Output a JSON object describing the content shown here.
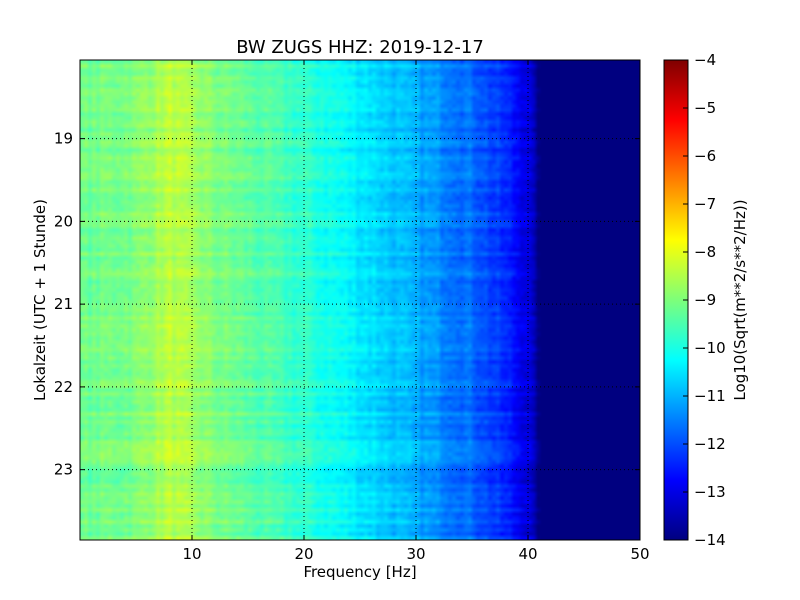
{
  "chart_data": {
    "type": "heatmap",
    "title": "BW ZUGS HHZ: 2019-12-17",
    "xlabel": "Frequency [Hz]",
    "ylabel": "Lokalzeit (UTC + 1 Stunde)",
    "xlim": [
      0,
      50
    ],
    "ylim": [
      18.05,
      23.85
    ],
    "y_inverted": true,
    "x_ticks": [
      10,
      20,
      30,
      40,
      50
    ],
    "x_tick_labels": [
      "10",
      "20",
      "30",
      "40",
      "50"
    ],
    "y_ticks": [
      19,
      20,
      21,
      22,
      23
    ],
    "y_tick_labels": [
      "19",
      "20",
      "21",
      "22",
      "23"
    ],
    "grid": true,
    "colormap": "jet",
    "colorbar": {
      "label": "Log10(Sqrt(m**2/s**2/Hz))",
      "range": [
        -14,
        -4
      ],
      "ticks": [
        -4,
        -5,
        -6,
        -7,
        -8,
        -9,
        -10,
        -11,
        -12,
        -13,
        -14
      ],
      "tick_labels": [
        "−4",
        "−5",
        "−6",
        "−7",
        "−8",
        "−9",
        "−10",
        "−11",
        "−12",
        "−13",
        "−14"
      ]
    },
    "spectrum_profile": {
      "frequency_hz": [
        0,
        5,
        8,
        12,
        15,
        20,
        25,
        30,
        35,
        38,
        40,
        41,
        42,
        50
      ],
      "log10_amplitude": [
        -9.2,
        -9.0,
        -8.4,
        -9.0,
        -9.3,
        -9.8,
        -10.4,
        -11.1,
        -11.7,
        -12.4,
        -13.0,
        -14.0,
        -14.0,
        -14.0
      ]
    }
  }
}
